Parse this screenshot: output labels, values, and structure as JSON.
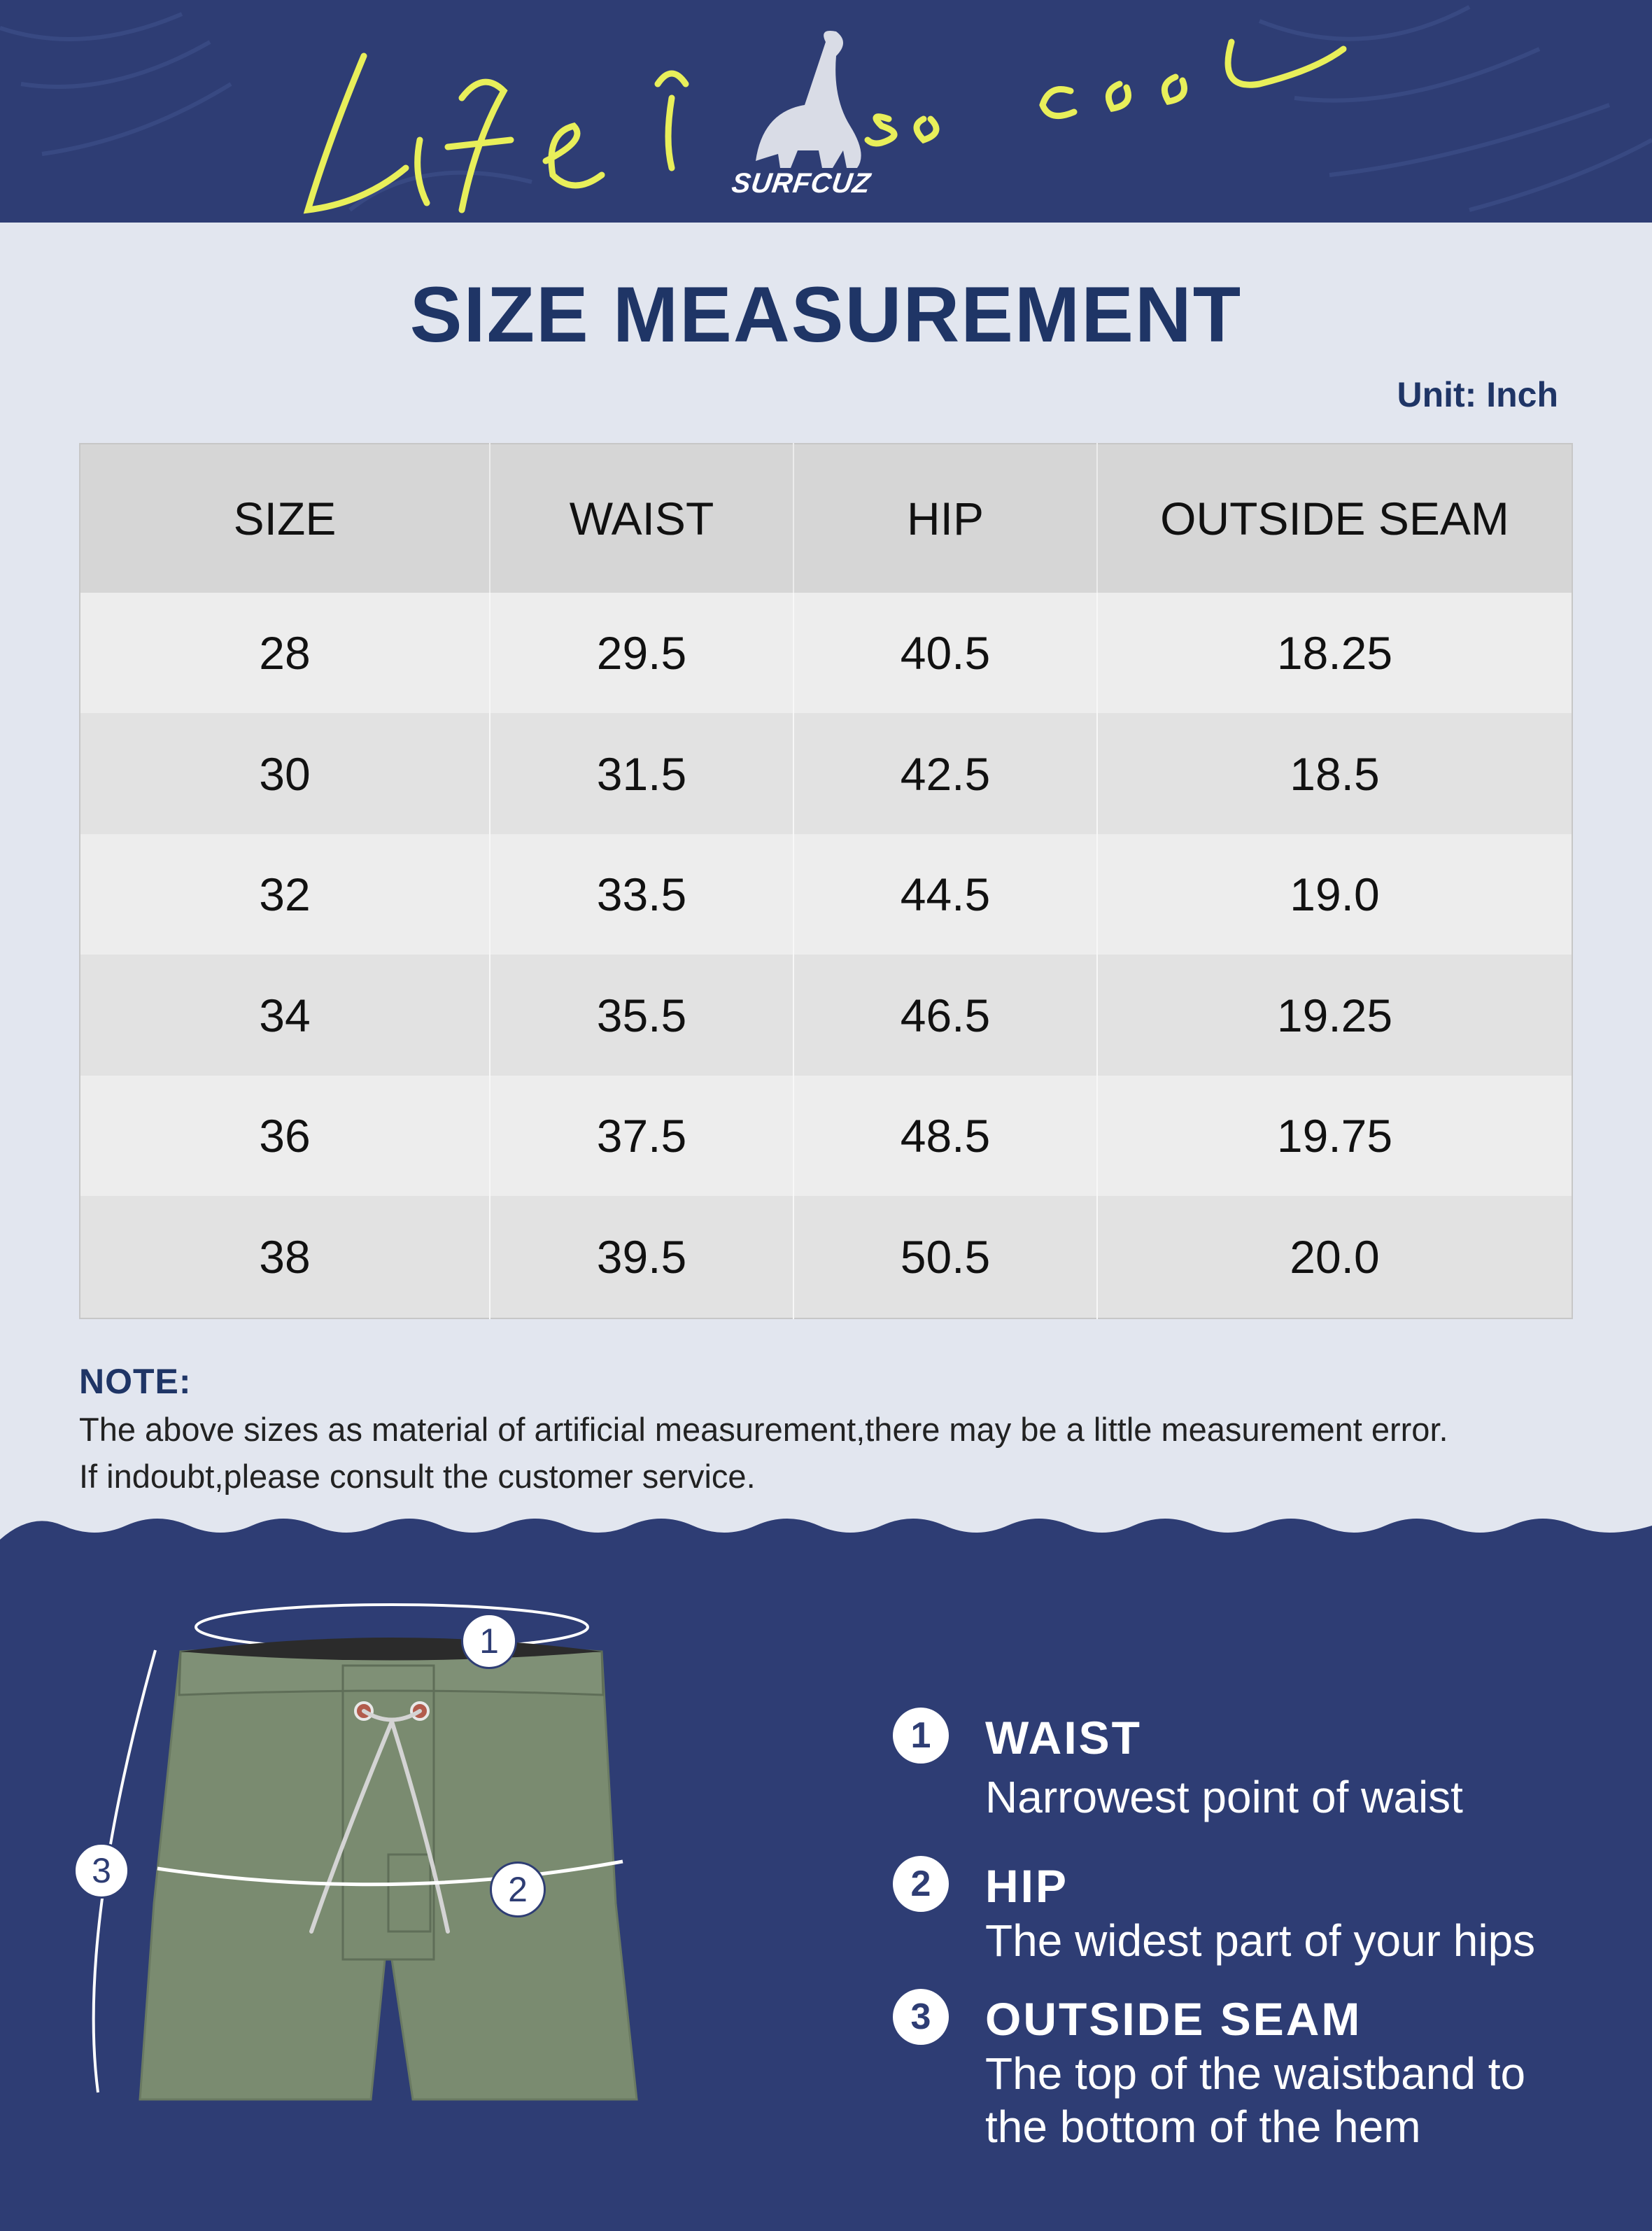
{
  "banner": {
    "script_text": "Life is so cool",
    "brand": "SURFCUZ"
  },
  "page": {
    "title": "SIZE MEASUREMENT",
    "unit": "Unit: Inch"
  },
  "table": {
    "headers": [
      "SIZE",
      "WAIST",
      "HIP",
      "OUTSIDE SEAM"
    ],
    "rows": [
      [
        "28",
        "29.5",
        "40.5",
        "18.25"
      ],
      [
        "30",
        "31.5",
        "42.5",
        "18.5"
      ],
      [
        "32",
        "33.5",
        "44.5",
        "19.0"
      ],
      [
        "34",
        "35.5",
        "46.5",
        "19.25"
      ],
      [
        "36",
        "37.5",
        "48.5",
        "19.75"
      ],
      [
        "38",
        "39.5",
        "50.5",
        "20.0"
      ]
    ]
  },
  "note": {
    "heading": "NOTE:",
    "line1": "The above sizes as material of artificial measurement,there may be a little measurement error.",
    "line2": "If indoubt,please consult the customer service."
  },
  "diagram": {
    "markers": [
      "1",
      "2",
      "3"
    ]
  },
  "legend": [
    {
      "number": "1",
      "title": "WAIST",
      "desc": [
        "Narrowest point of waist"
      ]
    },
    {
      "number": "2",
      "title": "HIP",
      "desc": [
        "The widest part of your hips"
      ]
    },
    {
      "number": "3",
      "title": "OUTSIDE SEAM",
      "desc": [
        "The top of the waistband to",
        "the bottom of the hem"
      ]
    }
  ],
  "colors": {
    "navy": "#2e3d74",
    "title_blue": "#1f3566",
    "lime": "#e8ef5a",
    "shorts_green": "#7a8b70"
  }
}
